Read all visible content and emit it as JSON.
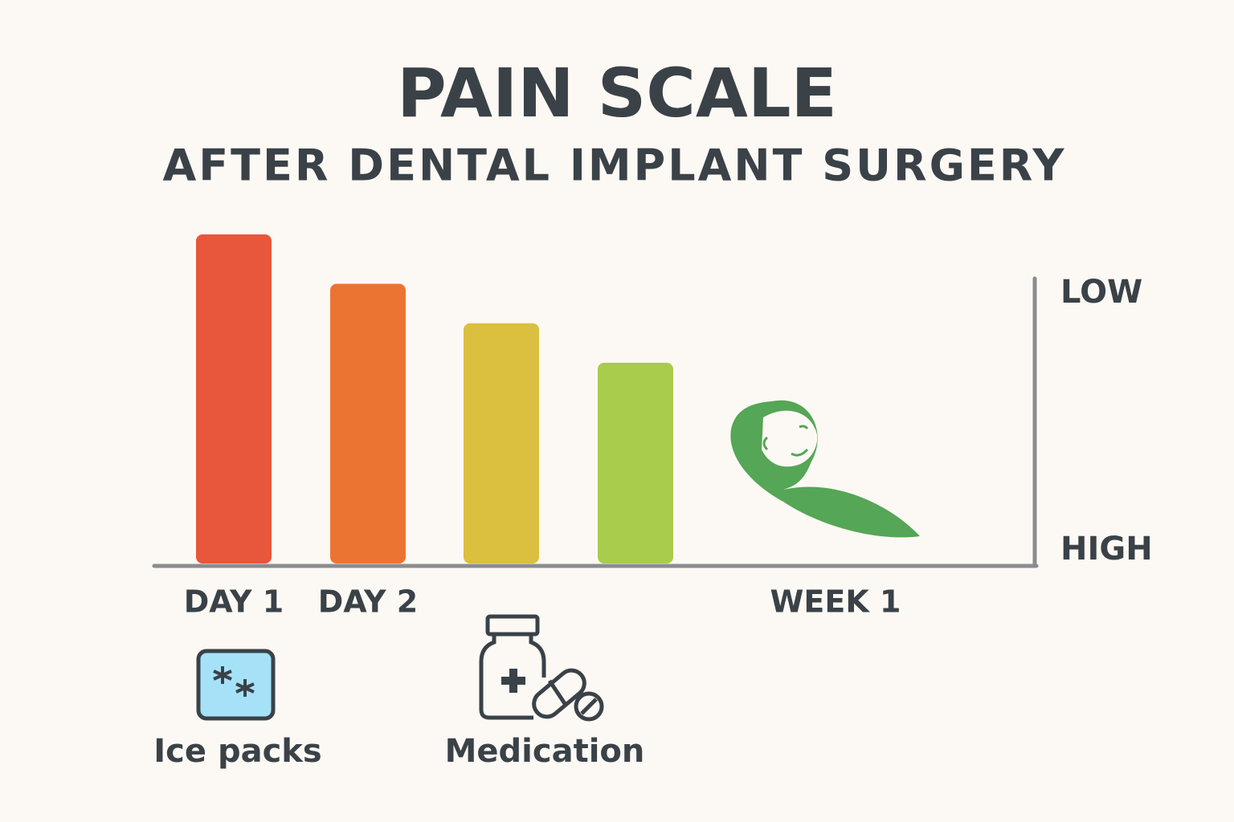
{
  "chart_data": {
    "type": "bar",
    "title": "PAIN SCALE",
    "subtitle": "AFTER DENTAL IMPLANT SURGERY",
    "categories": [
      "DAY 1",
      "DAY 2",
      null,
      null,
      "WEEK 1"
    ],
    "values": [
      10,
      8.5,
      7.3,
      6.1,
      null
    ],
    "colors": [
      "#e8573b",
      "#ec7433",
      "#dbbf3f",
      "#a9cc4c",
      null
    ],
    "ylim": [
      0,
      10
    ],
    "y_axis_labels": [
      "LOW",
      "HIGH"
    ],
    "notes": [
      "Ice packs",
      "Medication"
    ]
  }
}
